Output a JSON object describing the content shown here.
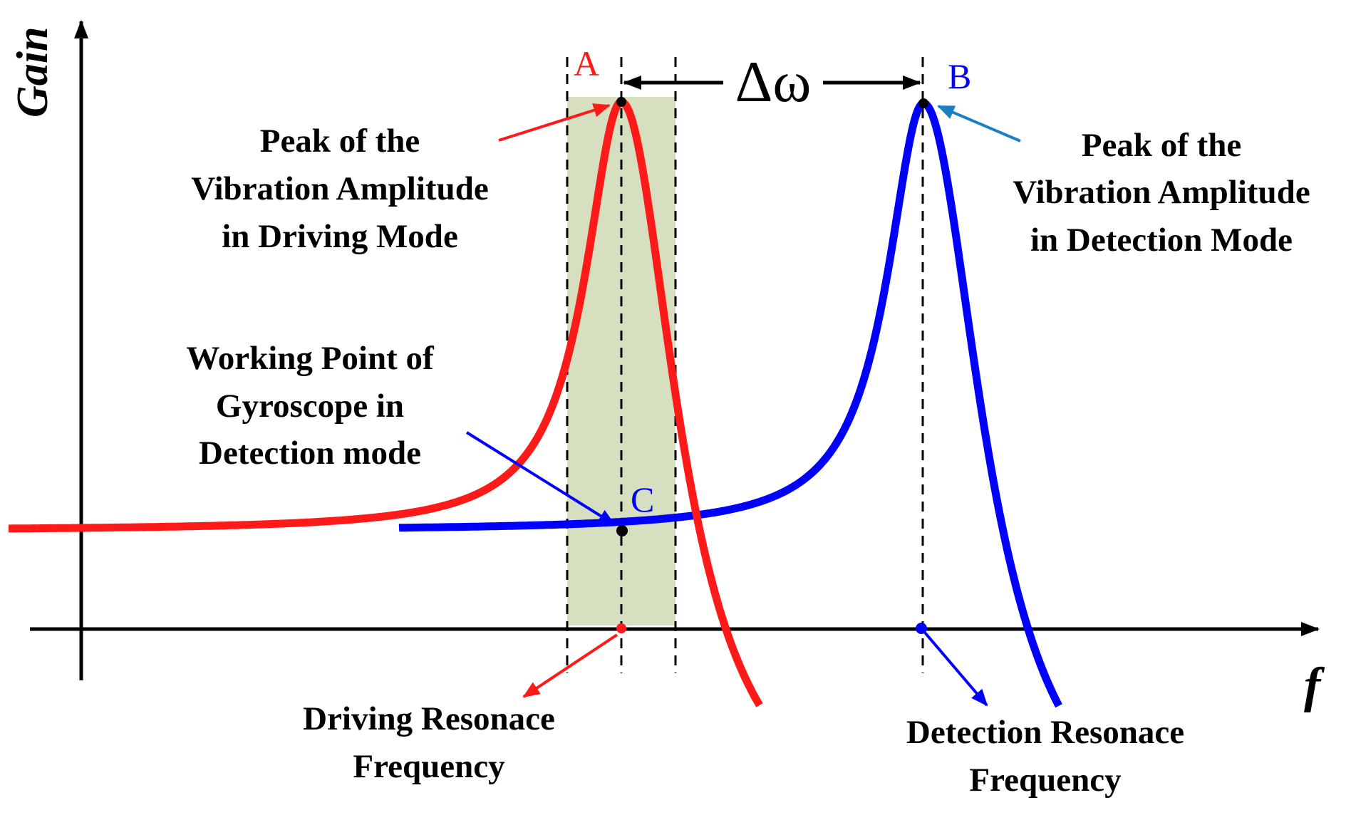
{
  "axes": {
    "y_label": "Gain",
    "x_label": "f"
  },
  "points": {
    "a": "A",
    "b": "B",
    "c": "C"
  },
  "delta_label": "Δω",
  "annotations": {
    "driving_peak": [
      "Peak of the",
      "Vibration Amplitude",
      "in Driving Mode"
    ],
    "detection_peak": [
      "Peak of the",
      "Vibration Amplitude",
      "in Detection Mode"
    ],
    "working_point": [
      "Working Point of",
      "Gyroscope in",
      "Detection mode"
    ],
    "driving_freq": [
      "Driving Resonace",
      "Frequency"
    ],
    "detection_freq": [
      "Detection Resonace",
      "Frequency"
    ]
  },
  "colors": {
    "driving": "#ff1a1a",
    "detection": "#0000ff",
    "band": "#d6dfbf",
    "detection_pointer": "#1a7fc4"
  },
  "chart_data": {
    "type": "line",
    "series": [
      {
        "color": "#ff1a1a"
      },
      {
        "color": "#0000ff"
      }
    ]
  }
}
